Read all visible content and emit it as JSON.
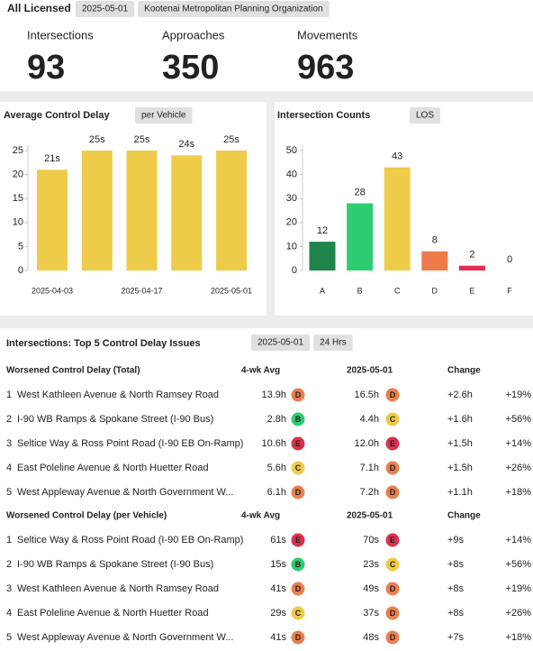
{
  "header": {
    "title": "All Licensed",
    "chips": [
      "2025-05-01",
      "Kootenai Metropolitan Planning Organization"
    ]
  },
  "stats": [
    {
      "label": "Intersections",
      "value": "93"
    },
    {
      "label": "Approaches",
      "value": "350"
    },
    {
      "label": "Movements",
      "value": "963"
    }
  ],
  "chart_data": [
    {
      "type": "bar",
      "title": "Average Control Delay",
      "subtitle": "per Vehicle",
      "categories": [
        "2025-04-03",
        null,
        "2025-04-17",
        null,
        "2025-05-01"
      ],
      "values": [
        21,
        25,
        25,
        24,
        25
      ],
      "value_labels": [
        "21s",
        "25s",
        "25s",
        "24s",
        "25s"
      ],
      "colors": [
        "#eecb48",
        "#eecb48",
        "#eecb48",
        "#eecb48",
        "#eecb48"
      ],
      "ylim": [
        0,
        25
      ],
      "yticks": [
        0,
        5,
        10,
        15,
        20,
        25
      ]
    },
    {
      "type": "bar",
      "title": "Intersection Counts",
      "subtitle": "LOS",
      "categories": [
        "A",
        "B",
        "C",
        "D",
        "E",
        "F"
      ],
      "values": [
        12,
        28,
        43,
        8,
        2,
        0
      ],
      "colors": [
        "#1e8449",
        "#2ecc71",
        "#eecb48",
        "#ee7b4a",
        "#e03050",
        "#cccccc"
      ],
      "ylim": [
        0,
        50
      ],
      "yticks": [
        0,
        10,
        20,
        30,
        40,
        50
      ]
    }
  ],
  "table": {
    "title": "Intersections: Top 5 Control Delay Issues",
    "chips": [
      "2025-05-01",
      "24 Hrs"
    ],
    "sections": [
      {
        "title": "Worsened Control Delay (Total)",
        "columns": [
          "4-wk Avg",
          "2025-05-01",
          "Change"
        ],
        "rows": [
          [
            "1",
            "West Kathleen Avenue & North Ramsey Road",
            "13.9h",
            "D",
            "16.5h",
            "D",
            "+2.6h",
            "+19%"
          ],
          [
            "2",
            "I-90 WB Ramps & Spokane Street (I-90 Bus)",
            "2.8h",
            "B",
            "4.4h",
            "C",
            "+1.6h",
            "+56%"
          ],
          [
            "3",
            "Seltice Way & Ross Point Road (I-90 EB On-Ramp)",
            "10.6h",
            "E",
            "12.0h",
            "E",
            "+1.5h",
            "+14%"
          ],
          [
            "4",
            "East Poleline Avenue & North Huetter Road",
            "5.6h",
            "C",
            "7.1h",
            "D",
            "+1.5h",
            "+26%"
          ],
          [
            "5",
            "West Appleway Avenue & North Government W...",
            "6.1h",
            "D",
            "7.2h",
            "D",
            "+1.1h",
            "+18%"
          ]
        ]
      },
      {
        "title": "Worsened Control Delay (per Vehicle)",
        "columns": [
          "4-wk Avg",
          "2025-05-01",
          "Change"
        ],
        "rows": [
          [
            "1",
            "Seltice Way & Ross Point Road (I-90 EB On-Ramp)",
            "61s",
            "E",
            "70s",
            "E",
            "+9s",
            "+14%"
          ],
          [
            "2",
            "I-90 WB Ramps & Spokane Street (I-90 Bus)",
            "15s",
            "B",
            "23s",
            "C",
            "+8s",
            "+56%"
          ],
          [
            "3",
            "West Kathleen Avenue & North Ramsey Road",
            "41s",
            "D",
            "49s",
            "D",
            "+8s",
            "+19%"
          ],
          [
            "4",
            "East Poleline Avenue & North Huetter Road",
            "29s",
            "C",
            "37s",
            "D",
            "+8s",
            "+26%"
          ],
          [
            "5",
            "West Appleway Avenue & North Government W...",
            "41s",
            "D",
            "48s",
            "D",
            "+7s",
            "+18%"
          ]
        ]
      }
    ]
  }
}
